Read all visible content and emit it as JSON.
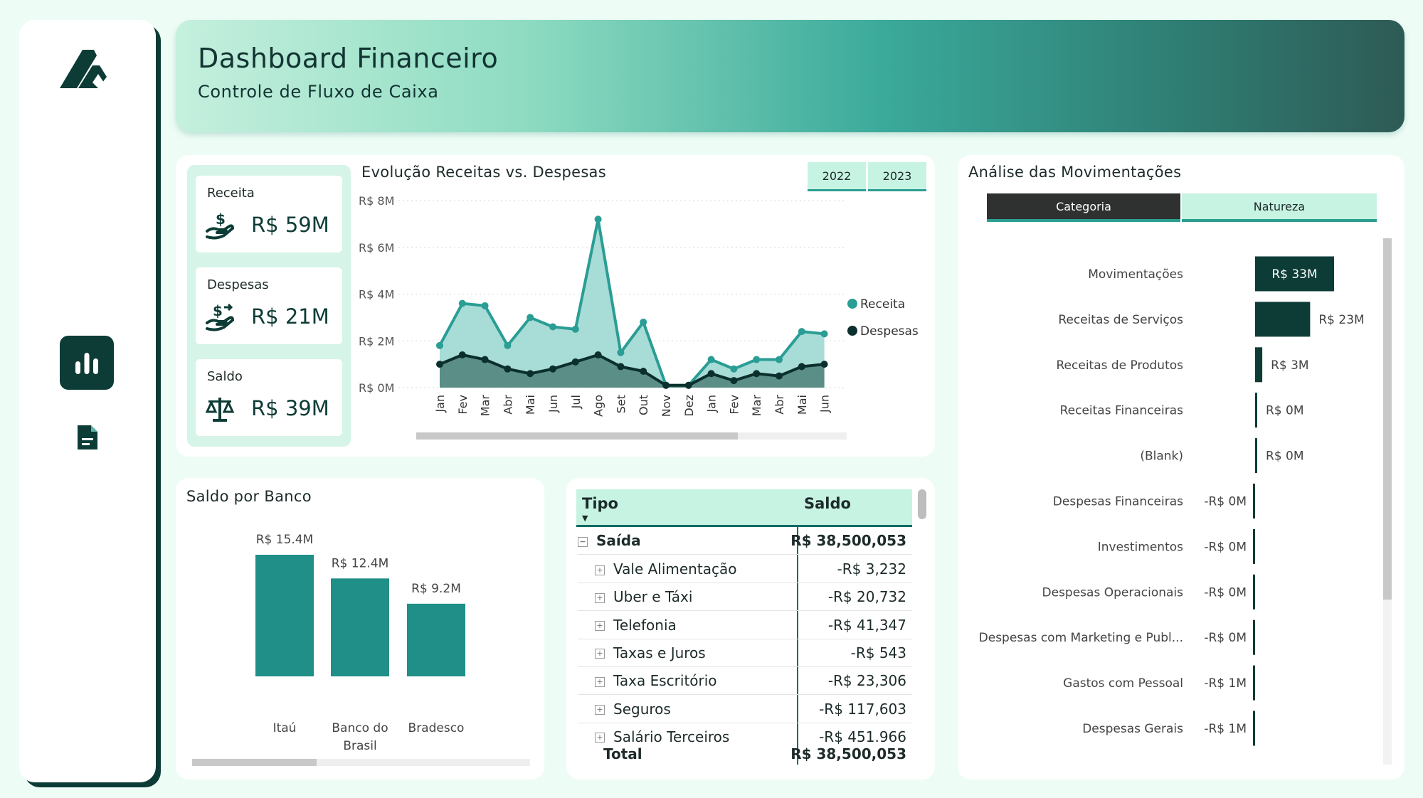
{
  "header": {
    "title": "Dashboard Financeiro",
    "subtitle": "Controle de Fluxo de Caixa"
  },
  "sidebar": {
    "items": [
      {
        "icon": "bar-chart-icon",
        "active": true
      },
      {
        "icon": "document-icon",
        "active": false
      }
    ]
  },
  "kpis": [
    {
      "label": "Receita",
      "value": "R$ 59M",
      "icon": "money-hand-icon"
    },
    {
      "label": "Despesas",
      "value": "R$ 21M",
      "icon": "money-out-icon"
    },
    {
      "label": "Saldo",
      "value": "R$ 39M",
      "icon": "scale-icon"
    }
  ],
  "line_chart": {
    "title": "Evolução Receitas vs. Despesas",
    "year_buttons": [
      "2022",
      "2023"
    ],
    "legend": [
      "Receita",
      "Despesas"
    ]
  },
  "bank_chart": {
    "title": "Saldo por Banco"
  },
  "movements": {
    "title": "Análise das Movimentações",
    "tabs": [
      "Categoria",
      "Natureza"
    ]
  },
  "table": {
    "headers": [
      "Tipo",
      "Saldo"
    ],
    "group": {
      "label": "Saída",
      "value": "R$ 38,500,053"
    },
    "rows": [
      {
        "label": "Vale Alimentação",
        "value": "-R$ 3,232"
      },
      {
        "label": "Uber e Táxi",
        "value": "-R$ 20,732"
      },
      {
        "label": "Telefonia",
        "value": "-R$ 41,347"
      },
      {
        "label": "Taxas e Juros",
        "value": "-R$ 543"
      },
      {
        "label": "Taxa Escritório",
        "value": "-R$ 23,306"
      },
      {
        "label": "Seguros",
        "value": "-R$ 117,603"
      },
      {
        "label": "Salário Terceiros",
        "value": "-R$ 451.966"
      }
    ],
    "total": {
      "label": "Total",
      "value": "R$ 38,500,053"
    }
  },
  "colors": {
    "dark": "#0d3c36",
    "teal": "#1f8f87",
    "receita": "#2a9d94",
    "despesas": "#0b2f2c",
    "mint": "#c7f3e3"
  },
  "chart_data": [
    {
      "type": "area",
      "title": "Evolução Receitas vs. Despesas",
      "categories": [
        "Jan",
        "Fev",
        "Mar",
        "Abr",
        "Mai",
        "Jun",
        "Jul",
        "Ago",
        "Set",
        "Out",
        "Nov",
        "Dez",
        "Jan",
        "Fev",
        "Mar",
        "Abr",
        "Mai",
        "Jun"
      ],
      "ytick_labels": [
        "R$ 0M",
        "R$ 2M",
        "R$ 4M",
        "R$ 6M",
        "R$ 8M"
      ],
      "ylim": [
        0,
        8
      ],
      "grid": true,
      "legend_position": "right",
      "series": [
        {
          "name": "Receita",
          "values": [
            1.8,
            3.6,
            3.5,
            1.8,
            3.0,
            2.6,
            2.5,
            7.2,
            1.5,
            2.8,
            0.1,
            0.1,
            1.2,
            0.8,
            1.2,
            1.2,
            2.4,
            2.3
          ]
        },
        {
          "name": "Despesas",
          "values": [
            1.0,
            1.4,
            1.2,
            0.8,
            0.6,
            0.8,
            1.1,
            1.4,
            0.9,
            0.7,
            0.1,
            0.1,
            0.6,
            0.3,
            0.6,
            0.5,
            0.9,
            1.0
          ]
        }
      ]
    },
    {
      "type": "bar",
      "title": "Saldo por Banco",
      "categories": [
        "Itaú",
        "Banco do Brasil",
        "Bradesco"
      ],
      "values": [
        15.4,
        12.4,
        9.2
      ],
      "data_labels": [
        "R$ 15.4M",
        "R$ 12.4M",
        "R$ 9.2M"
      ]
    },
    {
      "type": "bar",
      "orientation": "horizontal",
      "title": "Análise das Movimentações",
      "categories": [
        "Movimentações",
        "Receitas de Serviços",
        "Receitas de Produtos",
        "Receitas Financeiras",
        "(Blank)",
        "Despesas Financeiras",
        "Investimentos",
        "Despesas Operacionais",
        "Despesas com Marketing e Publ...",
        "Gastos com Pessoal",
        "Despesas Gerais"
      ],
      "values": [
        33,
        23,
        3,
        0.2,
        0,
        -0.2,
        -0.2,
        -0.3,
        -0.3,
        -0.6,
        -0.8
      ],
      "data_labels": [
        "R$ 33M",
        "R$ 23M",
        "R$ 3M",
        "R$ 0M",
        "R$ 0M",
        "-R$ 0M",
        "-R$ 0M",
        "-R$ 0M",
        "-R$ 0M",
        "-R$ 1M",
        "-R$ 1M"
      ]
    }
  ]
}
